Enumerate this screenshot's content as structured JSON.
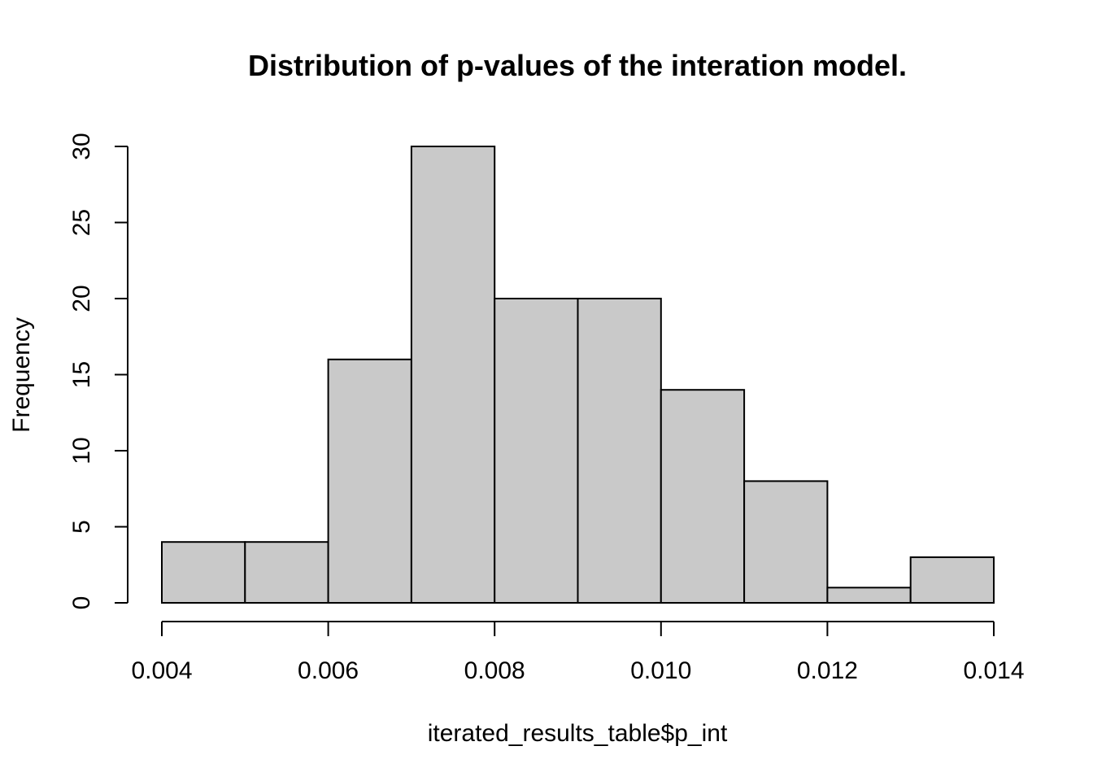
{
  "chart_data": {
    "type": "bar",
    "subtype": "histogram",
    "title": "Distribution of p-values of the interation model.",
    "xlabel": "iterated_results_table$p_int",
    "ylabel": "Frequency",
    "bins": [
      {
        "x0": 0.004,
        "x1": 0.005,
        "count": 4
      },
      {
        "x0": 0.005,
        "x1": 0.006,
        "count": 4
      },
      {
        "x0": 0.006,
        "x1": 0.007,
        "count": 16
      },
      {
        "x0": 0.007,
        "x1": 0.008,
        "count": 30
      },
      {
        "x0": 0.008,
        "x1": 0.009,
        "count": 20
      },
      {
        "x0": 0.009,
        "x1": 0.01,
        "count": 20
      },
      {
        "x0": 0.01,
        "x1": 0.011,
        "count": 14
      },
      {
        "x0": 0.011,
        "x1": 0.012,
        "count": 8
      },
      {
        "x0": 0.012,
        "x1": 0.013,
        "count": 1
      },
      {
        "x0": 0.013,
        "x1": 0.014,
        "count": 3
      }
    ],
    "xlim": [
      0.004,
      0.014
    ],
    "ylim": [
      0,
      30
    ],
    "x_ticks": [
      0.004,
      0.006,
      0.008,
      0.01,
      0.012,
      0.014
    ],
    "x_tick_labels": [
      "0.004",
      "0.006",
      "0.008",
      "0.010",
      "0.012",
      "0.014"
    ],
    "y_ticks": [
      0,
      5,
      10,
      15,
      20,
      25,
      30
    ],
    "y_tick_labels": [
      "0",
      "5",
      "10",
      "15",
      "20",
      "25",
      "30"
    ],
    "bar_fill": "#c9c9c9",
    "bar_stroke": "#000000",
    "grid": false,
    "legend": false
  }
}
